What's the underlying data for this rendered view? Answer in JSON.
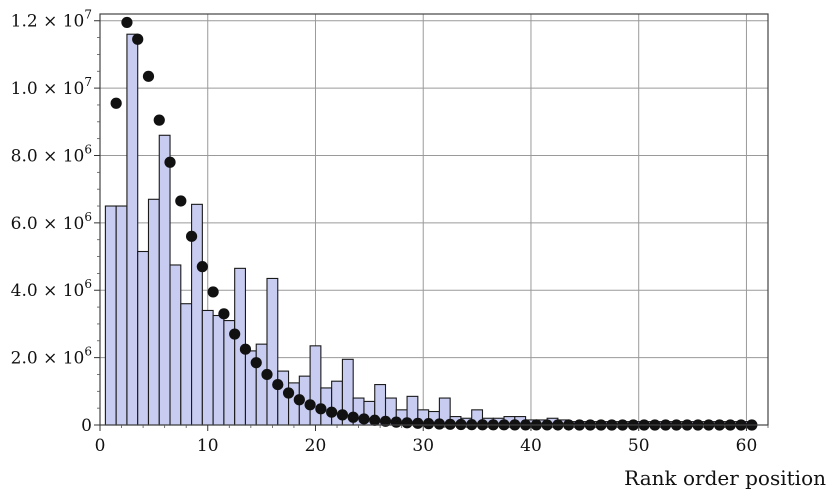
{
  "chart_data": {
    "type": "bar",
    "xlabel": "Rank order position",
    "ylabel": "",
    "xlim": [
      0,
      62
    ],
    "ylim": [
      0,
      12200000
    ],
    "x_ticks": [
      0,
      10,
      20,
      30,
      40,
      50,
      60
    ],
    "y_ticks": [
      0,
      2000000,
      4000000,
      6000000,
      8000000,
      10000000,
      12000000
    ],
    "y_tick_labels": [
      {
        "mantissa": "0",
        "exponent": ""
      },
      {
        "mantissa": "2.0 × 10",
        "exponent": "6"
      },
      {
        "mantissa": "4.0 × 10",
        "exponent": "6"
      },
      {
        "mantissa": "6.0 × 10",
        "exponent": "6"
      },
      {
        "mantissa": "8.0 × 10",
        "exponent": "6"
      },
      {
        "mantissa": "1.0 × 10",
        "exponent": "7"
      },
      {
        "mantissa": "1.2 × 10",
        "exponent": "7"
      }
    ],
    "grid": true,
    "colors": {
      "bar_fill": "#c8ccf0",
      "bar_stroke": "#1a1a1a",
      "point": "#111111",
      "grid": "#9a9a9a",
      "frame": "#444444"
    },
    "series": [
      {
        "type": "bar",
        "x": [
          1,
          2,
          3,
          4,
          5,
          6,
          7,
          8,
          9,
          10,
          11,
          12,
          13,
          14,
          15,
          16,
          17,
          18,
          19,
          20,
          21,
          22,
          23,
          24,
          25,
          26,
          27,
          28,
          29,
          30,
          31,
          32,
          33,
          34,
          35,
          36,
          37,
          38,
          39,
          40,
          41,
          42,
          43,
          44,
          45,
          46,
          47,
          48,
          49,
          50,
          51,
          52,
          53,
          54,
          55,
          56,
          57,
          58,
          59,
          60
        ],
        "values": [
          6500000,
          6500000,
          11600000,
          5150000,
          6700000,
          8600000,
          4750000,
          3600000,
          6550000,
          3400000,
          3250000,
          3100000,
          4650000,
          2200000,
          2400000,
          4350000,
          1600000,
          1250000,
          1450000,
          2350000,
          1100000,
          1300000,
          1950000,
          800000,
          700000,
          1200000,
          800000,
          450000,
          850000,
          450000,
          400000,
          800000,
          250000,
          200000,
          450000,
          200000,
          200000,
          250000,
          250000,
          150000,
          150000,
          200000,
          150000,
          100000,
          100000,
          100000,
          100000,
          100000,
          100000,
          100000,
          100000,
          100000,
          100000,
          100000,
          100000,
          100000,
          100000,
          100000,
          100000,
          100000
        ]
      },
      {
        "type": "scatter",
        "x": [
          1,
          2,
          3,
          4,
          5,
          6,
          7,
          8,
          9,
          10,
          11,
          12,
          13,
          14,
          15,
          16,
          17,
          18,
          19,
          20,
          21,
          22,
          23,
          24,
          25,
          26,
          27,
          28,
          29,
          30,
          31,
          32,
          33,
          34,
          35,
          36,
          37,
          38,
          39,
          40,
          41,
          42,
          43,
          44,
          45,
          46,
          47,
          48,
          49,
          50,
          51,
          52,
          53,
          54,
          55,
          56,
          57,
          58,
          59,
          60
        ],
        "values": [
          9550000,
          11950000,
          11450000,
          10350000,
          9050000,
          7800000,
          6650000,
          5600000,
          4700000,
          3950000,
          3300000,
          2700000,
          2250000,
          1850000,
          1500000,
          1200000,
          950000,
          750000,
          600000,
          480000,
          380000,
          300000,
          230000,
          180000,
          140000,
          110000,
          85000,
          65000,
          50000,
          40000,
          30000,
          20000,
          15000,
          10000,
          8000,
          6000,
          5000,
          4000,
          3000,
          2000,
          1500,
          1000,
          800,
          600,
          500,
          400,
          300,
          200,
          150,
          100,
          80,
          60,
          40,
          30,
          20,
          15,
          10,
          8,
          5,
          3
        ]
      }
    ]
  }
}
